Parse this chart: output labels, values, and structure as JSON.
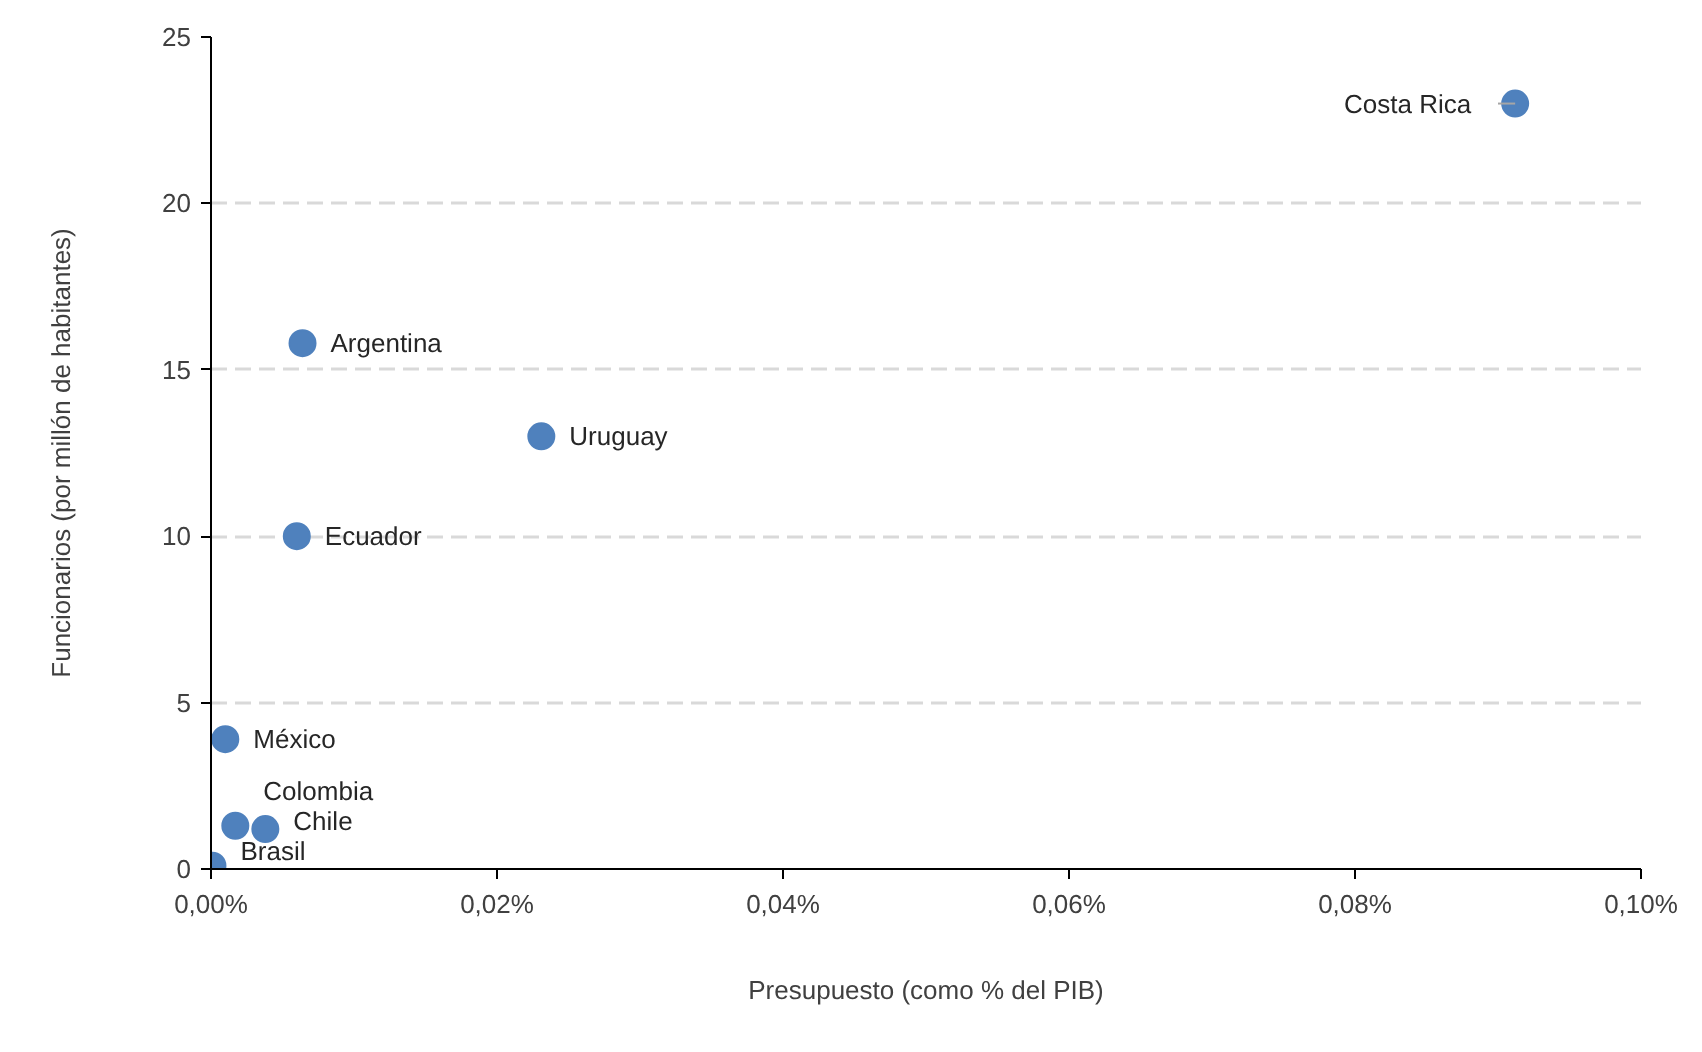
{
  "chart_data": {
    "type": "scatter",
    "xlabel": "Presupuesto (como % del PIB)",
    "ylabel": "Funcionarios (por millón de habitantes)",
    "x": [
      0.0912,
      0.0064,
      0.0231,
      0.006,
      0.001,
      0.0017,
      0.0038,
      0.0001
    ],
    "series": [
      {
        "color": "#4f81bd",
        "values": [
          23,
          15.8,
          13.0,
          10.0,
          3.9,
          1.3,
          1.2,
          0.1
        ]
      }
    ],
    "annotations": [
      {
        "text": "Costa Rica",
        "x": 0.0912,
        "y": 23
      },
      {
        "text": "Argentina",
        "x": 0.0064,
        "y": 15.8
      },
      {
        "text": "Uruguay",
        "x": 0.0231,
        "y": 13.0
      },
      {
        "text": "Ecuador",
        "x": 0.006,
        "y": 10.0
      },
      {
        "text": "México",
        "x": 0.001,
        "y": 3.9
      },
      {
        "text": "Colombia",
        "x": 0.0017,
        "y": 1.3
      },
      {
        "text": "Chile",
        "x": 0.0038,
        "y": 1.2
      },
      {
        "text": "Brasil",
        "x": 0.0001,
        "y": 0.1
      }
    ],
    "xlim": [
      0,
      0.1
    ],
    "ylim": [
      0,
      25
    ],
    "xticks": [
      {
        "value": 0,
        "label": "0,00%"
      },
      {
        "value": 0.02,
        "label": "0,02%"
      },
      {
        "value": 0.04,
        "label": "0,04%"
      },
      {
        "value": 0.06,
        "label": "0,06%"
      },
      {
        "value": 0.08,
        "label": "0,08%"
      },
      {
        "value": 0.1,
        "label": "0,10%"
      }
    ],
    "yticks": [
      0,
      5,
      10,
      15,
      20,
      25
    ],
    "grid": "y",
    "marker": "circle"
  }
}
